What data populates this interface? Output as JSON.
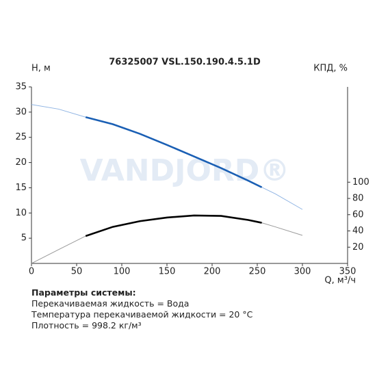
{
  "chart_data": {
    "type": "line",
    "title": "76325007 VSL.150.190.4.5.1D",
    "y_label": "Н, м",
    "y2_label": "КПД, %",
    "x_label": "Q, м³/ч",
    "watermark": "VANDJORD®",
    "x": [
      0,
      30,
      60,
      90,
      120,
      150,
      180,
      210,
      240,
      255,
      270,
      300
    ],
    "series": [
      {
        "name": "Н",
        "color": "#1a5fb4",
        "thin_color": "#8fb4e3",
        "values": [
          31.5,
          30.6,
          29.0,
          27.6,
          25.7,
          23.5,
          21.2,
          18.9,
          16.4,
          15.1,
          13.8,
          10.7
        ]
      },
      {
        "name": "КПД",
        "color": "#000000",
        "thin_color": "#999999",
        "axis": "y2",
        "values": [
          0,
          17,
          33.7,
          45,
          52,
          56.5,
          59,
          58.5,
          53.5,
          50,
          45,
          34.5
        ]
      }
    ],
    "bold_range": [
      60,
      255
    ],
    "xlim": [
      0,
      350
    ],
    "xticks": [
      0,
      50,
      100,
      150,
      200,
      250,
      300,
      350
    ],
    "ylim": [
      0,
      35
    ],
    "yticks": [
      5,
      10,
      15,
      20,
      25,
      30,
      35
    ],
    "y2lim": [
      0,
      217.3
    ],
    "y2ticks": [
      20,
      40,
      60,
      80,
      100
    ]
  },
  "parameters": {
    "heading": "Параметры системы:",
    "lines": [
      "Перекачиваемая жидкость = Вода",
      "Температура перекачиваемой жидкости = 20 °C",
      "Плотность = 998.2 кг/м³"
    ]
  }
}
